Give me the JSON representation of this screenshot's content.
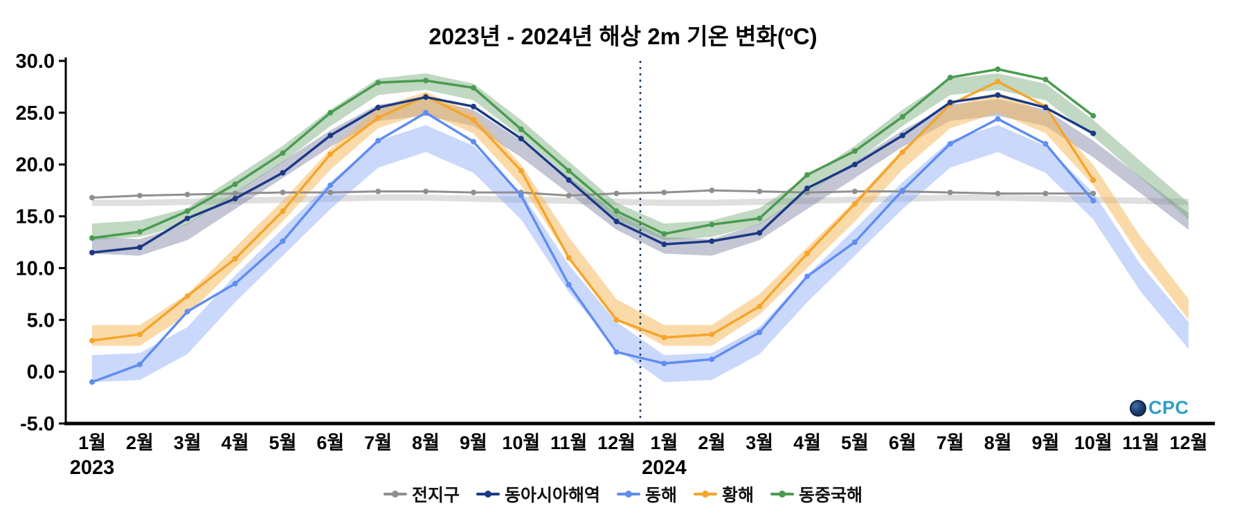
{
  "logo": {
    "text": "CPC"
  },
  "chart_data": {
    "type": "line",
    "title": "2023년 - 2024년 해상 2m 기온 변화(ºC)",
    "ylabel": "",
    "xlabel": "",
    "ylim": [
      -5,
      30
    ],
    "ytick_step": 5,
    "grid": false,
    "legend_position": "bottom-center",
    "x_labels": [
      "1월",
      "2월",
      "3월",
      "4월",
      "5월",
      "6월",
      "7월",
      "8월",
      "9월",
      "10월",
      "11월",
      "12월",
      "1월",
      "2월",
      "3월",
      "4월",
      "5월",
      "6월",
      "7월",
      "8월",
      "9월",
      "10월",
      "11월",
      "12월"
    ],
    "year_labels": [
      {
        "text": "2023",
        "month_index": 0
      },
      {
        "text": "2024",
        "month_index": 12
      }
    ],
    "separator_after_index": 11,
    "draw_order": [
      "global",
      "east-sea",
      "yellow-sea",
      "east-china",
      "east-asia"
    ],
    "series": [
      {
        "key": "global",
        "name": "전지구",
        "color": "#8f8f8f",
        "width": 3,
        "values": [
          16.8,
          17.0,
          17.1,
          17.2,
          17.3,
          17.3,
          17.4,
          17.4,
          17.3,
          17.3,
          17.0,
          17.2,
          17.3,
          17.5,
          17.4,
          17.3,
          17.4,
          17.4,
          17.3,
          17.2,
          17.2,
          17.2,
          null,
          null
        ],
        "band_color": "rgba(150,150,150,0.30)",
        "band": {
          "upper": [
            16.6,
            16.6,
            16.7,
            16.8,
            16.9,
            17.0,
            17.1,
            17.1,
            17.0,
            16.9,
            16.8,
            16.7,
            16.6,
            16.6,
            16.7,
            16.8,
            16.9,
            17.0,
            17.1,
            17.1,
            17.0,
            16.9,
            16.8,
            16.7
          ],
          "lower": [
            16.0,
            16.0,
            16.1,
            16.2,
            16.3,
            16.4,
            16.5,
            16.5,
            16.4,
            16.3,
            16.2,
            16.1,
            16.0,
            16.0,
            16.1,
            16.2,
            16.3,
            16.4,
            16.5,
            16.5,
            16.4,
            16.3,
            16.2,
            16.1
          ]
        }
      },
      {
        "key": "east-asia",
        "name": "동아시아해역",
        "color": "#1b3a85",
        "width": 3.5,
        "values": [
          11.5,
          12.0,
          14.8,
          16.7,
          19.2,
          22.8,
          25.5,
          26.5,
          25.6,
          22.5,
          18.5,
          14.5,
          12.3,
          12.6,
          13.4,
          17.7,
          20.0,
          22.8,
          26.0,
          26.7,
          25.5,
          23.0,
          null,
          null
        ],
        "band_color": "rgba(124,128,162,0.45)",
        "band": {
          "upper": [
            13.0,
            12.8,
            14.3,
            17.3,
            20.3,
            23.3,
            25.8,
            26.3,
            25.3,
            22.3,
            18.8,
            15.3,
            13.0,
            12.8,
            14.3,
            17.3,
            20.3,
            23.3,
            25.8,
            26.3,
            25.3,
            22.3,
            18.8,
            15.3
          ],
          "lower": [
            11.4,
            11.2,
            12.7,
            15.7,
            18.7,
            21.7,
            24.2,
            24.7,
            23.7,
            20.7,
            17.2,
            13.7,
            11.4,
            11.2,
            12.7,
            15.7,
            18.7,
            21.7,
            24.2,
            24.7,
            23.7,
            20.7,
            17.2,
            13.7
          ]
        }
      },
      {
        "key": "east-sea",
        "name": "동해",
        "color": "#5f8df2",
        "width": 3.5,
        "values": [
          -1.0,
          0.7,
          5.8,
          8.5,
          12.6,
          18.0,
          22.3,
          25.0,
          22.2,
          17.0,
          8.4,
          1.9,
          0.8,
          1.2,
          3.8,
          9.2,
          12.5,
          17.5,
          22.0,
          24.4,
          22.0,
          16.5,
          null,
          null
        ],
        "band_color": "rgba(122,158,248,0.40)",
        "band": {
          "upper": [
            1.6,
            1.8,
            4.3,
            9.3,
            13.8,
            18.3,
            22.3,
            23.8,
            21.8,
            17.3,
            10.3,
            4.8,
            1.6,
            1.8,
            4.3,
            9.3,
            13.8,
            18.3,
            22.3,
            23.8,
            21.8,
            17.3,
            10.3,
            4.8
          ],
          "lower": [
            -1.0,
            -0.8,
            1.7,
            6.7,
            11.2,
            15.7,
            19.7,
            21.2,
            19.2,
            14.7,
            7.7,
            2.2,
            -1.0,
            -0.8,
            1.7,
            6.7,
            11.2,
            15.7,
            19.7,
            21.2,
            19.2,
            14.7,
            7.7,
            2.2
          ]
        }
      },
      {
        "key": "yellow-sea",
        "name": "황해",
        "color": "#f5a52a",
        "width": 3.5,
        "values": [
          3.0,
          3.6,
          7.3,
          10.9,
          15.5,
          21.0,
          24.5,
          26.6,
          24.3,
          19.4,
          11.0,
          5.0,
          3.3,
          3.6,
          6.3,
          11.4,
          16.2,
          21.2,
          25.8,
          28.0,
          25.6,
          18.5,
          null,
          null
        ],
        "band_color": "rgba(247,181,86,0.50)",
        "band": {
          "upper": [
            4.5,
            4.5,
            7.5,
            12.0,
            16.5,
            21.5,
            25.5,
            27.0,
            25.0,
            20.0,
            13.0,
            7.0,
            4.5,
            4.5,
            7.5,
            12.0,
            16.5,
            21.5,
            25.5,
            27.0,
            25.0,
            20.0,
            13.0,
            7.0
          ],
          "lower": [
            2.5,
            2.5,
            5.5,
            10.0,
            14.5,
            19.5,
            23.5,
            25.0,
            23.0,
            18.0,
            11.0,
            5.0,
            2.5,
            2.5,
            5.5,
            10.0,
            14.5,
            19.5,
            23.5,
            25.0,
            23.0,
            18.0,
            11.0,
            5.0
          ]
        }
      },
      {
        "key": "east-china",
        "name": "동중국해",
        "color": "#4a9b50",
        "width": 3.5,
        "values": [
          12.9,
          13.5,
          15.5,
          18.1,
          21.1,
          25.0,
          27.9,
          28.1,
          27.4,
          23.4,
          19.4,
          15.5,
          13.3,
          14.2,
          14.8,
          19.0,
          21.3,
          24.6,
          28.4,
          29.2,
          28.2,
          24.7,
          null,
          null
        ],
        "band_color": "rgba(118,168,120,0.45)",
        "band": {
          "upper": [
            14.3,
            14.6,
            15.8,
            18.8,
            21.8,
            25.3,
            28.3,
            28.8,
            27.8,
            24.3,
            20.3,
            16.3,
            14.3,
            14.6,
            15.8,
            18.8,
            21.8,
            25.3,
            28.3,
            28.8,
            27.8,
            24.3,
            20.3,
            16.3
          ],
          "lower": [
            12.7,
            13.0,
            14.2,
            17.2,
            20.2,
            23.7,
            26.7,
            27.2,
            26.2,
            22.7,
            18.7,
            14.7,
            12.7,
            13.0,
            14.2,
            17.2,
            20.2,
            23.7,
            26.7,
            27.2,
            26.2,
            22.7,
            18.7,
            14.7
          ]
        }
      }
    ]
  }
}
